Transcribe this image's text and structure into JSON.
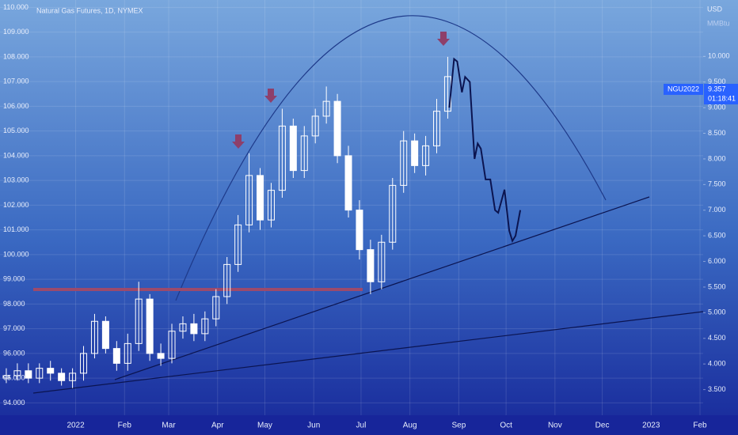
{
  "chart_data": {
    "type": "candlestick",
    "title": "Natural Gas Futures, 1D, NYMEX",
    "y2_unit": "USD",
    "y2_unit_sub": "MMBtu",
    "xlim": [
      -48,
      398
    ],
    "xticks": [
      {
        "value": 0,
        "label": "2022"
      },
      {
        "value": 31,
        "label": "Feb"
      },
      {
        "value": 59,
        "label": "Mar"
      },
      {
        "value": 90,
        "label": "Apr"
      },
      {
        "value": 120,
        "label": "May"
      },
      {
        "value": 151,
        "label": "Jun"
      },
      {
        "value": 181,
        "label": "Jul"
      },
      {
        "value": 212,
        "label": "Aug"
      },
      {
        "value": 243,
        "label": "Sep"
      },
      {
        "value": 273,
        "label": "Oct"
      },
      {
        "value": 304,
        "label": "Nov"
      },
      {
        "value": 334,
        "label": "Dec"
      },
      {
        "value": 365,
        "label": "2023"
      },
      {
        "value": 396,
        "label": "Feb"
      }
    ],
    "ylim": [
      93.5,
      110.3
    ],
    "yticks": [
      {
        "value": 94,
        "label": "94.000"
      },
      {
        "value": 95,
        "label": "95.000"
      },
      {
        "value": 96,
        "label": "96.000"
      },
      {
        "value": 97,
        "label": "97.000"
      },
      {
        "value": 98,
        "label": "98.000"
      },
      {
        "value": 99,
        "label": "99.000"
      },
      {
        "value": 100,
        "label": "100.000"
      },
      {
        "value": 101,
        "label": "101.000"
      },
      {
        "value": 102,
        "label": "102.000"
      },
      {
        "value": 103,
        "label": "103.000"
      },
      {
        "value": 104,
        "label": "104.000"
      },
      {
        "value": 105,
        "label": "105.000"
      },
      {
        "value": 106,
        "label": "106.000"
      },
      {
        "value": 107,
        "label": "107.000"
      },
      {
        "value": 108,
        "label": "108.000"
      },
      {
        "value": 109,
        "label": "109.000"
      },
      {
        "value": 110,
        "label": "110.000"
      }
    ],
    "y2lim": [
      3.0,
      11.1
    ],
    "y2ticks": [
      {
        "value": 3.5,
        "label": "3.500"
      },
      {
        "value": 4,
        "label": "4.000"
      },
      {
        "value": 4.5,
        "label": "4.500"
      },
      {
        "value": 5,
        "label": "5.000"
      },
      {
        "value": 5.5,
        "label": "5.500"
      },
      {
        "value": 6,
        "label": "6.000"
      },
      {
        "value": 6.5,
        "label": "6.500"
      },
      {
        "value": 7,
        "label": "7.000"
      },
      {
        "value": 7.5,
        "label": "7.500"
      },
      {
        "value": 8,
        "label": "8.000"
      },
      {
        "value": 8.5,
        "label": "8.500"
      },
      {
        "value": 9,
        "label": "9.000"
      },
      {
        "value": 9.5,
        "label": "9.500"
      },
      {
        "value": 10,
        "label": "10.000"
      }
    ],
    "candles": {
      "color": "#ffffff",
      "x": [
        -44,
        -37,
        -30,
        -23,
        -16,
        -9,
        -2,
        5,
        12,
        19,
        26,
        33,
        40,
        47,
        54,
        61,
        68,
        75,
        82,
        89,
        96,
        103,
        110,
        117,
        124,
        131,
        138,
        145,
        152,
        159,
        166,
        173,
        180,
        187,
        194,
        201,
        208,
        215,
        222,
        229,
        236
      ],
      "open": [
        95.0,
        95.1,
        95.3,
        95.0,
        95.4,
        95.2,
        94.9,
        95.2,
        96.0,
        97.3,
        96.2,
        95.6,
        96.4,
        98.2,
        96.0,
        95.8,
        96.9,
        97.2,
        96.8,
        97.4,
        98.3,
        99.6,
        101.2,
        103.2,
        101.4,
        102.6,
        105.2,
        103.4,
        104.8,
        105.6,
        106.2,
        104.0,
        101.8,
        100.2,
        98.9,
        100.5,
        102.8,
        104.6,
        103.6,
        104.4,
        105.8
      ],
      "high": [
        95.4,
        95.6,
        95.6,
        95.6,
        95.7,
        95.4,
        95.4,
        96.3,
        97.6,
        97.5,
        96.5,
        96.8,
        98.9,
        98.4,
        96.4,
        97.2,
        97.5,
        97.6,
        97.7,
        98.6,
        99.9,
        101.6,
        104.1,
        103.5,
        102.9,
        105.9,
        105.5,
        105.2,
        105.9,
        106.8,
        106.5,
        104.4,
        102.2,
        100.6,
        100.8,
        103.1,
        105.0,
        104.9,
        104.8,
        106.3,
        108.0
      ],
      "low": [
        94.8,
        94.9,
        94.8,
        94.8,
        94.9,
        94.7,
        94.6,
        94.9,
        95.8,
        96.0,
        95.3,
        95.3,
        96.1,
        95.7,
        95.5,
        95.6,
        96.6,
        96.5,
        96.5,
        97.1,
        98.0,
        99.3,
        100.9,
        101.0,
        101.1,
        102.3,
        103.1,
        103.1,
        104.5,
        105.3,
        103.7,
        101.5,
        99.8,
        98.4,
        98.6,
        100.2,
        102.5,
        103.3,
        103.2,
        104.1,
        105.5
      ],
      "close": [
        95.1,
        95.3,
        95.0,
        95.4,
        95.2,
        94.9,
        95.2,
        96.0,
        97.3,
        96.2,
        95.6,
        96.4,
        98.2,
        96.0,
        95.8,
        96.9,
        97.2,
        96.8,
        97.4,
        98.3,
        99.6,
        101.2,
        103.2,
        101.4,
        102.6,
        105.2,
        103.4,
        104.8,
        105.6,
        106.2,
        104.0,
        101.8,
        100.2,
        98.9,
        100.5,
        102.8,
        104.6,
        103.6,
        104.4,
        105.8,
        107.2
      ]
    },
    "series": [
      {
        "name": "NGU2022",
        "color": "#0b1450",
        "axis": "y2",
        "x": [
          237,
          240,
          242,
          245,
          247,
          250,
          253,
          255,
          257,
          260,
          263,
          266,
          268,
          272,
          275,
          277,
          279,
          282
        ],
        "values": [
          9.0,
          9.95,
          9.9,
          9.3,
          9.6,
          9.5,
          8.0,
          8.3,
          8.2,
          7.6,
          7.6,
          7.0,
          6.95,
          7.4,
          6.6,
          6.4,
          6.5,
          7.0
        ]
      }
    ],
    "price_tag": {
      "symbol": "NGU2022",
      "price": 9.357,
      "countdown": "01:18:41"
    }
  }
}
